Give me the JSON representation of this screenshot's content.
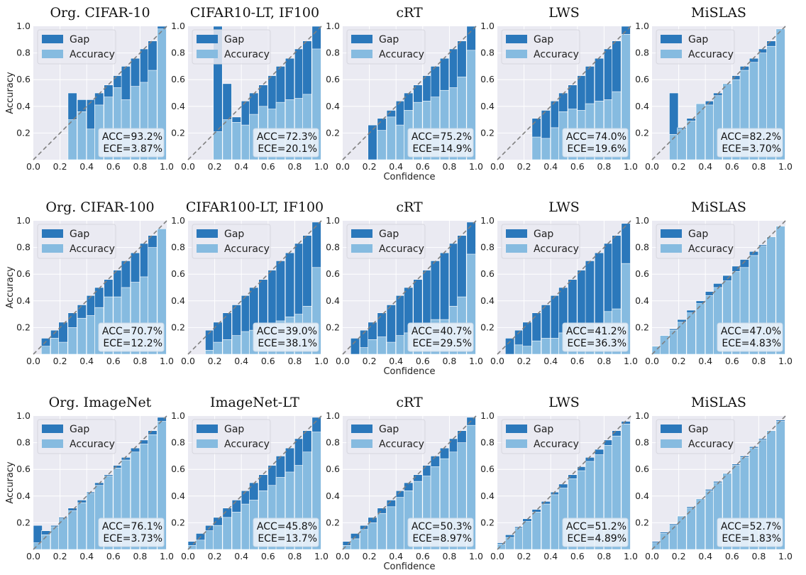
{
  "colors": {
    "gap": "#2b78bb",
    "accuracy": "#86bbe0",
    "background": "#eaeaf2",
    "grid": "#ffffff",
    "diagonal": "#808080"
  },
  "legend": {
    "gap": "Gap",
    "accuracy": "Accuracy",
    "placement": "upper-left"
  },
  "axis": {
    "xlabel": "Confidence",
    "ylabel": "Accuracy",
    "xticks": [
      "0.0",
      "0.2",
      "0.4",
      "0.6",
      "0.8",
      "1.0"
    ],
    "yticks": [
      "0.2",
      "0.4",
      "0.6",
      "0.8",
      "1.0"
    ]
  },
  "chart_data": [
    {
      "type": "bar",
      "title": "Org. CIFAR-10",
      "acc_label": "ACC=93.2%",
      "ece_label": "ECE=3.87%",
      "xlim": [
        0,
        1
      ],
      "ylim": [
        0,
        1
      ],
      "bin_start": [
        0.26,
        0.33,
        0.4,
        0.46,
        0.53,
        0.6,
        0.66,
        0.73,
        0.8,
        0.86,
        0.93
      ],
      "gap_top": [
        0.5,
        0.45,
        0.45,
        0.5,
        0.56,
        0.63,
        0.7,
        0.76,
        0.83,
        0.89,
        1.0
      ],
      "accuracy": [
        0.3,
        0.36,
        0.23,
        0.41,
        0.47,
        0.54,
        0.45,
        0.55,
        0.58,
        0.67,
        0.98
      ]
    },
    {
      "type": "bar",
      "title": "CIFAR10-LT, IF100",
      "acc_label": "ACC=72.3%",
      "ece_label": "ECE=20.1%",
      "xlim": [
        0,
        1
      ],
      "ylim": [
        0,
        1
      ],
      "bin_start": [
        0.19,
        0.26,
        0.33,
        0.4,
        0.46,
        0.53,
        0.6,
        0.66,
        0.73,
        0.8,
        0.86,
        0.93
      ],
      "gap_top": [
        1.0,
        0.57,
        0.32,
        0.44,
        0.5,
        0.56,
        0.63,
        0.7,
        0.76,
        0.83,
        0.89,
        1.0
      ],
      "accuracy": [
        0.21,
        0.3,
        0.28,
        0.26,
        0.34,
        0.4,
        0.38,
        0.43,
        0.45,
        0.46,
        0.49,
        0.83
      ]
    },
    {
      "type": "bar",
      "title": "cRT",
      "acc_label": "ACC=75.2%",
      "ece_label": "ECE=14.9%",
      "xlim": [
        0,
        1
      ],
      "ylim": [
        0,
        1
      ],
      "bin_start": [
        0.19,
        0.26,
        0.33,
        0.4,
        0.46,
        0.53,
        0.6,
        0.66,
        0.73,
        0.8,
        0.86,
        0.93
      ],
      "gap_top": [
        0.26,
        0.31,
        0.37,
        0.44,
        0.5,
        0.56,
        0.63,
        0.7,
        0.76,
        0.83,
        0.89,
        1.0
      ],
      "accuracy": [
        0.0,
        0.22,
        0.32,
        0.26,
        0.37,
        0.43,
        0.44,
        0.47,
        0.52,
        0.54,
        0.62,
        0.82
      ]
    },
    {
      "type": "bar",
      "title": "LWS",
      "acc_label": "ACC=74.0%",
      "ece_label": "ECE=19.6%",
      "xlim": [
        0,
        1
      ],
      "ylim": [
        0,
        1
      ],
      "bin_start": [
        0.26,
        0.33,
        0.4,
        0.46,
        0.53,
        0.6,
        0.66,
        0.73,
        0.8,
        0.86,
        0.93
      ],
      "gap_top": [
        0.31,
        0.37,
        0.44,
        0.5,
        0.56,
        0.63,
        0.7,
        0.76,
        0.83,
        0.89,
        1.0
      ],
      "accuracy": [
        0.17,
        0.16,
        0.24,
        0.36,
        0.38,
        0.37,
        0.42,
        0.44,
        0.45,
        0.51,
        0.94
      ]
    },
    {
      "type": "bar",
      "title": "MiSLAS",
      "acc_label": "ACC=82.2%",
      "ece_label": "ECE=3.70%",
      "xlim": [
        0,
        1
      ],
      "ylim": [
        0,
        1
      ],
      "bin_start": [
        0.13,
        0.19,
        0.26,
        0.33,
        0.4,
        0.46,
        0.53,
        0.6,
        0.66,
        0.73,
        0.8,
        0.86,
        0.93
      ],
      "gap_top": [
        0.5,
        0.24,
        0.31,
        0.37,
        0.44,
        0.5,
        0.56,
        0.63,
        0.7,
        0.76,
        0.83,
        0.89,
        0.98
      ],
      "accuracy": [
        0.19,
        0.23,
        0.29,
        0.42,
        0.41,
        0.48,
        0.57,
        0.6,
        0.67,
        0.73,
        0.8,
        0.85,
        0.98
      ]
    },
    {
      "type": "bar",
      "title": "Org. CIFAR-100",
      "acc_label": "ACC=70.7%",
      "ece_label": "ECE=12.2%",
      "xlim": [
        0,
        1
      ],
      "ylim": [
        0,
        1
      ],
      "bin_start": [
        0.06,
        0.13,
        0.19,
        0.26,
        0.33,
        0.4,
        0.46,
        0.53,
        0.6,
        0.66,
        0.73,
        0.8,
        0.86,
        0.93
      ],
      "gap_top": [
        0.12,
        0.18,
        0.24,
        0.31,
        0.37,
        0.44,
        0.5,
        0.56,
        0.63,
        0.7,
        0.76,
        0.83,
        0.89,
        0.94
      ],
      "accuracy": [
        0.06,
        0.12,
        0.09,
        0.2,
        0.27,
        0.29,
        0.35,
        0.43,
        0.43,
        0.5,
        0.54,
        0.58,
        0.8,
        0.94
      ]
    },
    {
      "type": "bar",
      "title": "CIFAR100-LT, IF100",
      "acc_label": "ACC=39.0%",
      "ece_label": "ECE=38.1%",
      "xlim": [
        0,
        1
      ],
      "ylim": [
        0,
        1
      ],
      "bin_start": [
        0.13,
        0.19,
        0.26,
        0.33,
        0.4,
        0.46,
        0.53,
        0.6,
        0.66,
        0.73,
        0.8,
        0.86,
        0.93
      ],
      "gap_top": [
        0.18,
        0.24,
        0.31,
        0.37,
        0.44,
        0.5,
        0.56,
        0.63,
        0.7,
        0.76,
        0.83,
        0.89,
        0.99
      ],
      "accuracy": [
        0.03,
        0.09,
        0.11,
        0.14,
        0.17,
        0.18,
        0.21,
        0.22,
        0.25,
        0.28,
        0.3,
        0.36,
        0.65
      ]
    },
    {
      "type": "bar",
      "title": "cRT",
      "acc_label": "ACC=40.7%",
      "ece_label": "ECE=29.5%",
      "xlim": [
        0,
        1
      ],
      "ylim": [
        0,
        1
      ],
      "bin_start": [
        0.06,
        0.13,
        0.19,
        0.26,
        0.33,
        0.4,
        0.46,
        0.53,
        0.6,
        0.66,
        0.73,
        0.8,
        0.86,
        0.93
      ],
      "gap_top": [
        0.12,
        0.18,
        0.24,
        0.31,
        0.37,
        0.44,
        0.5,
        0.56,
        0.63,
        0.7,
        0.76,
        0.83,
        0.89,
        0.99
      ],
      "accuracy": [
        0.0,
        0.05,
        0.11,
        0.13,
        0.09,
        0.14,
        0.16,
        0.19,
        0.21,
        0.26,
        0.26,
        0.36,
        0.43,
        0.75
      ]
    },
    {
      "type": "bar",
      "title": "LWS",
      "acc_label": "ACC=41.2%",
      "ece_label": "ECE=36.3%",
      "xlim": [
        0,
        1
      ],
      "ylim": [
        0,
        1
      ],
      "bin_start": [
        0.06,
        0.13,
        0.19,
        0.26,
        0.33,
        0.4,
        0.46,
        0.53,
        0.6,
        0.66,
        0.73,
        0.8,
        0.86,
        0.93
      ],
      "gap_top": [
        0.12,
        0.18,
        0.24,
        0.31,
        0.37,
        0.44,
        0.5,
        0.56,
        0.63,
        0.7,
        0.76,
        0.83,
        0.89,
        0.98
      ],
      "accuracy": [
        0.0,
        0.07,
        0.06,
        0.1,
        0.12,
        0.12,
        0.16,
        0.17,
        0.18,
        0.17,
        0.22,
        0.32,
        0.34,
        0.68
      ]
    },
    {
      "type": "bar",
      "title": "MiSLAS",
      "acc_label": "ACC=47.0%",
      "ece_label": "ECE=4.83%",
      "xlim": [
        0,
        1
      ],
      "ylim": [
        0,
        1
      ],
      "bin_start": [
        0.0,
        0.06,
        0.13,
        0.19,
        0.26,
        0.33,
        0.4,
        0.46,
        0.53,
        0.6,
        0.66,
        0.73,
        0.8,
        0.86,
        0.93
      ],
      "gap_top": [
        0.06,
        0.14,
        0.19,
        0.26,
        0.33,
        0.4,
        0.47,
        0.53,
        0.59,
        0.66,
        0.71,
        0.77,
        0.82,
        0.88,
        0.96
      ],
      "accuracy": [
        0.06,
        0.14,
        0.18,
        0.24,
        0.31,
        0.38,
        0.44,
        0.5,
        0.55,
        0.62,
        0.65,
        0.74,
        0.81,
        0.88,
        0.96
      ]
    },
    {
      "type": "bar",
      "title": "Org. ImageNet",
      "acc_label": "ACC=76.1%",
      "ece_label": "ECE=3.73%",
      "xlim": [
        0,
        1
      ],
      "ylim": [
        0,
        1
      ],
      "bin_start": [
        0.0,
        0.06,
        0.13,
        0.19,
        0.26,
        0.33,
        0.4,
        0.46,
        0.53,
        0.6,
        0.66,
        0.73,
        0.8,
        0.86,
        0.93
      ],
      "gap_top": [
        0.18,
        0.14,
        0.18,
        0.24,
        0.31,
        0.37,
        0.43,
        0.5,
        0.56,
        0.63,
        0.69,
        0.76,
        0.82,
        0.89,
        0.99
      ],
      "accuracy": [
        0.05,
        0.11,
        0.17,
        0.23,
        0.29,
        0.35,
        0.42,
        0.48,
        0.55,
        0.61,
        0.67,
        0.73,
        0.79,
        0.86,
        0.96
      ]
    },
    {
      "type": "bar",
      "title": "ImageNet-LT",
      "acc_label": "ACC=45.8%",
      "ece_label": "ECE=13.7%",
      "xlim": [
        0,
        1
      ],
      "ylim": [
        0,
        1
      ],
      "bin_start": [
        0.0,
        0.06,
        0.13,
        0.19,
        0.26,
        0.33,
        0.4,
        0.46,
        0.53,
        0.6,
        0.66,
        0.73,
        0.8,
        0.86,
        0.93
      ],
      "gap_top": [
        0.06,
        0.12,
        0.18,
        0.24,
        0.31,
        0.37,
        0.44,
        0.5,
        0.56,
        0.63,
        0.7,
        0.76,
        0.83,
        0.89,
        0.99
      ],
      "accuracy": [
        0.03,
        0.07,
        0.14,
        0.18,
        0.24,
        0.28,
        0.34,
        0.37,
        0.44,
        0.48,
        0.54,
        0.58,
        0.63,
        0.73,
        0.88
      ]
    },
    {
      "type": "bar",
      "title": "cRT",
      "acc_label": "ACC=50.3%",
      "ece_label": "ECE=8.97%",
      "xlim": [
        0,
        1
      ],
      "ylim": [
        0,
        1
      ],
      "bin_start": [
        0.0,
        0.06,
        0.13,
        0.19,
        0.26,
        0.33,
        0.4,
        0.46,
        0.53,
        0.6,
        0.66,
        0.73,
        0.8,
        0.86,
        0.93
      ],
      "gap_top": [
        0.06,
        0.12,
        0.18,
        0.24,
        0.31,
        0.37,
        0.44,
        0.5,
        0.56,
        0.63,
        0.7,
        0.76,
        0.83,
        0.89,
        0.99
      ],
      "accuracy": [
        0.03,
        0.08,
        0.15,
        0.2,
        0.27,
        0.32,
        0.39,
        0.44,
        0.51,
        0.55,
        0.62,
        0.68,
        0.73,
        0.8,
        0.93
      ]
    },
    {
      "type": "bar",
      "title": "LWS",
      "acc_label": "ACC=51.2%",
      "ece_label": "ECE=4.89%",
      "xlim": [
        0,
        1
      ],
      "ylim": [
        0,
        1
      ],
      "bin_start": [
        0.0,
        0.06,
        0.13,
        0.19,
        0.26,
        0.33,
        0.4,
        0.46,
        0.53,
        0.6,
        0.66,
        0.73,
        0.8,
        0.86,
        0.93
      ],
      "gap_top": [
        0.05,
        0.11,
        0.17,
        0.23,
        0.3,
        0.36,
        0.43,
        0.49,
        0.56,
        0.62,
        0.69,
        0.75,
        0.82,
        0.89,
        0.96
      ],
      "accuracy": [
        0.04,
        0.09,
        0.16,
        0.21,
        0.28,
        0.34,
        0.41,
        0.46,
        0.53,
        0.59,
        0.66,
        0.71,
        0.78,
        0.85,
        0.94
      ]
    },
    {
      "type": "bar",
      "title": "MiSLAS",
      "acc_label": "ACC=52.7%",
      "ece_label": "ECE=1.83%",
      "xlim": [
        0,
        1
      ],
      "ylim": [
        0,
        1
      ],
      "bin_start": [
        0.0,
        0.06,
        0.13,
        0.19,
        0.26,
        0.33,
        0.4,
        0.46,
        0.53,
        0.6,
        0.66,
        0.73,
        0.8,
        0.86,
        0.93
      ],
      "gap_top": [
        0.06,
        0.13,
        0.19,
        0.25,
        0.32,
        0.38,
        0.45,
        0.51,
        0.57,
        0.64,
        0.7,
        0.77,
        0.83,
        0.89,
        0.97
      ],
      "accuracy": [
        0.05,
        0.12,
        0.18,
        0.25,
        0.31,
        0.38,
        0.44,
        0.5,
        0.57,
        0.63,
        0.69,
        0.76,
        0.82,
        0.89,
        0.96
      ]
    }
  ]
}
